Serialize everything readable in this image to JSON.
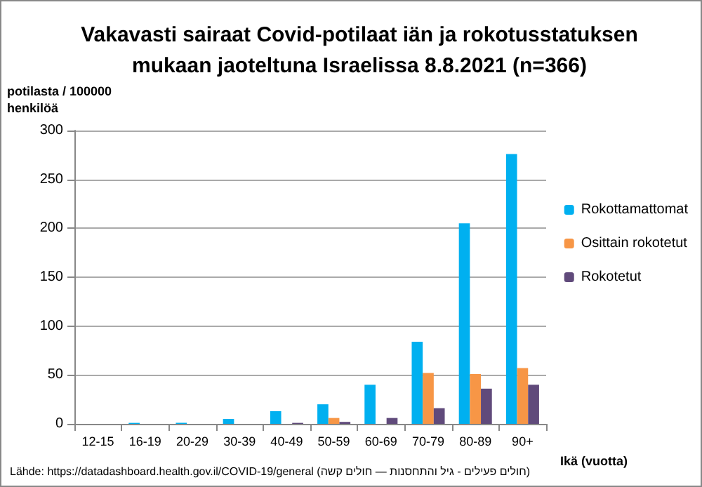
{
  "chart_data": {
    "type": "bar",
    "title": "Vakavasti sairaat Covid-potilaat iän ja rokotusstatuksen\nmukaan jaoteltuna Israelissa 8.8.2021 (n=366)",
    "ylabel": "potilasta / 100000\nhenkilöä",
    "xlabel": "Ikä (vuotta)",
    "annotations": [
      "Lähde: https://datadashboard.health.gov.il/COVID-19/general (חולים פעילים - גיל והתחסנות — חולים קשה)"
    ],
    "categories": [
      "12-15",
      "16-19",
      "20-29",
      "30-39",
      "40-49",
      "50-59",
      "60-69",
      "70-79",
      "80-89",
      "90+"
    ],
    "series": [
      {
        "name": "Rokottamattomat",
        "color": "#00b0f0",
        "values": [
          0,
          1,
          1,
          5,
          13,
          20,
          40,
          84,
          205,
          276
        ]
      },
      {
        "name": "Osittain rokotetut",
        "color": "#f79646",
        "values": [
          0,
          0,
          0,
          0,
          0,
          6,
          0,
          52,
          51,
          57
        ]
      },
      {
        "name": "Rokotetut",
        "color": "#604a7b",
        "values": [
          0,
          0,
          0,
          0,
          1,
          2,
          6,
          16,
          36,
          40
        ]
      }
    ],
    "ylim": [
      0,
      300
    ],
    "yticks": [
      0,
      50,
      100,
      150,
      200,
      250,
      300
    ],
    "grid": "y",
    "legend": "right"
  }
}
